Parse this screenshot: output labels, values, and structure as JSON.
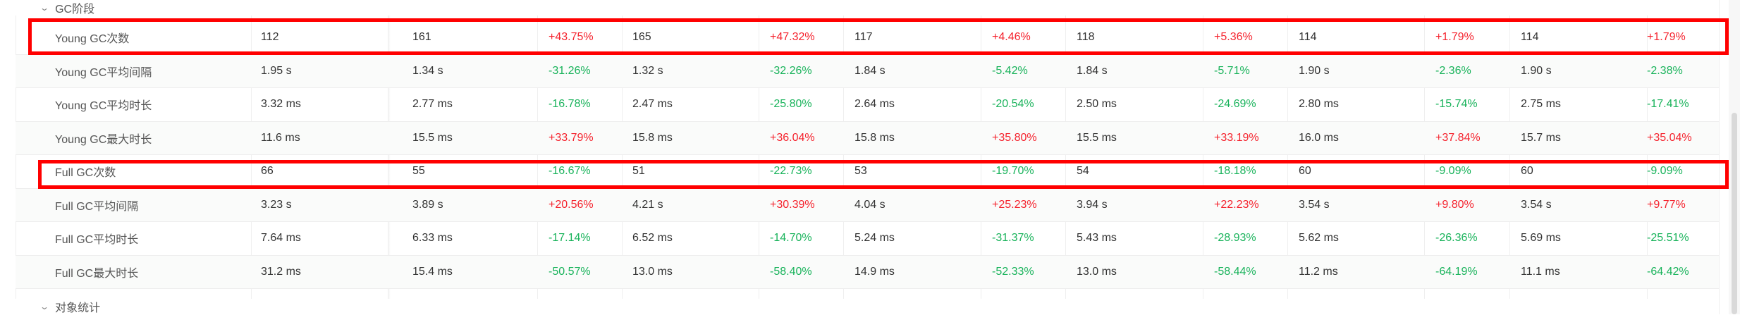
{
  "groups": {
    "gc": "GC阶段",
    "objects": "对象统计"
  },
  "rows": [
    {
      "name": "Young GC次数",
      "c": [
        "112",
        "161",
        "+43.75%",
        "165",
        "+47.32%",
        "117",
        "+4.46%",
        "118",
        "+5.36%",
        "114",
        "+1.79%",
        "114",
        "+1.79%"
      ]
    },
    {
      "name": "Young GC平均间隔",
      "c": [
        "1.95 s",
        "1.34 s",
        "-31.26%",
        "1.32 s",
        "-32.26%",
        "1.84 s",
        "-5.42%",
        "1.84 s",
        "-5.71%",
        "1.90 s",
        "-2.36%",
        "1.90 s",
        "-2.38%"
      ]
    },
    {
      "name": "Young GC平均时长",
      "c": [
        "3.32 ms",
        "2.77 ms",
        "-16.78%",
        "2.47 ms",
        "-25.80%",
        "2.64 ms",
        "-20.54%",
        "2.50 ms",
        "-24.69%",
        "2.80 ms",
        "-15.74%",
        "2.75 ms",
        "-17.41%"
      ]
    },
    {
      "name": "Young GC最大时长",
      "c": [
        "11.6 ms",
        "15.5 ms",
        "+33.79%",
        "15.8 ms",
        "+36.04%",
        "15.8 ms",
        "+35.80%",
        "15.5 ms",
        "+33.19%",
        "16.0 ms",
        "+37.84%",
        "15.7 ms",
        "+35.04%"
      ]
    },
    {
      "name": "Full GC次数",
      "c": [
        "66",
        "55",
        "-16.67%",
        "51",
        "-22.73%",
        "53",
        "-19.70%",
        "54",
        "-18.18%",
        "60",
        "-9.09%",
        "60",
        "-9.09%"
      ]
    },
    {
      "name": "Full GC平均间隔",
      "c": [
        "3.23 s",
        "3.89 s",
        "+20.56%",
        "4.21 s",
        "+30.39%",
        "4.04 s",
        "+25.23%",
        "3.94 s",
        "+22.23%",
        "3.54 s",
        "+9.80%",
        "3.54 s",
        "+9.77%"
      ]
    },
    {
      "name": "Full GC平均时长",
      "c": [
        "7.64 ms",
        "6.33 ms",
        "-17.14%",
        "6.52 ms",
        "-14.70%",
        "5.24 ms",
        "-31.37%",
        "5.43 ms",
        "-28.93%",
        "5.62 ms",
        "-26.36%",
        "5.69 ms",
        "-25.51%"
      ]
    },
    {
      "name": "Full GC最大时长",
      "c": [
        "31.2 ms",
        "15.4 ms",
        "-50.57%",
        "13.0 ms",
        "-58.40%",
        "14.9 ms",
        "-52.33%",
        "13.0 ms",
        "-58.44%",
        "11.2 ms",
        "-64.19%",
        "11.1 ms",
        "-64.42%"
      ]
    }
  ],
  "colors": {
    "positive": "#f5222d",
    "negative": "#19b35b",
    "highlight": "#ff0000"
  }
}
